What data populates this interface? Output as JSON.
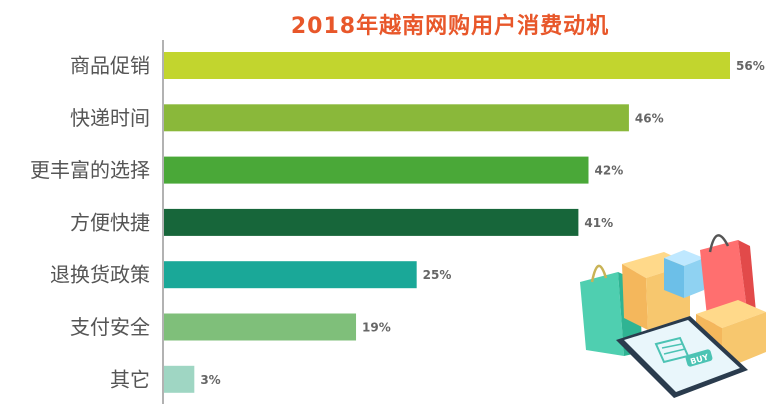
{
  "chart_data": {
    "type": "bar",
    "orientation": "horizontal",
    "title": "2018年越南网购用户消费动机",
    "categories": [
      "商品促销",
      "快递时间",
      "更丰富的选择",
      "方便快捷",
      "退换货政策",
      "支付安全",
      "其它"
    ],
    "values": [
      56,
      46,
      42,
      41,
      25,
      19,
      3
    ],
    "value_labels": [
      "56%",
      "46%",
      "42%",
      "41%",
      "25%",
      "19%",
      "3%"
    ],
    "unit": "%",
    "xlim": [
      0,
      60
    ],
    "grid": false,
    "legend": "none",
    "colors": [
      "#c2d52e",
      "#8ab83a",
      "#4aa838",
      "#17663a",
      "#1aa898",
      "#7fbf7a",
      "#9fd6c3"
    ]
  },
  "decoration": {
    "illustration": "shopping-bags-and-smartphone",
    "phone_button_text": "BUY"
  }
}
